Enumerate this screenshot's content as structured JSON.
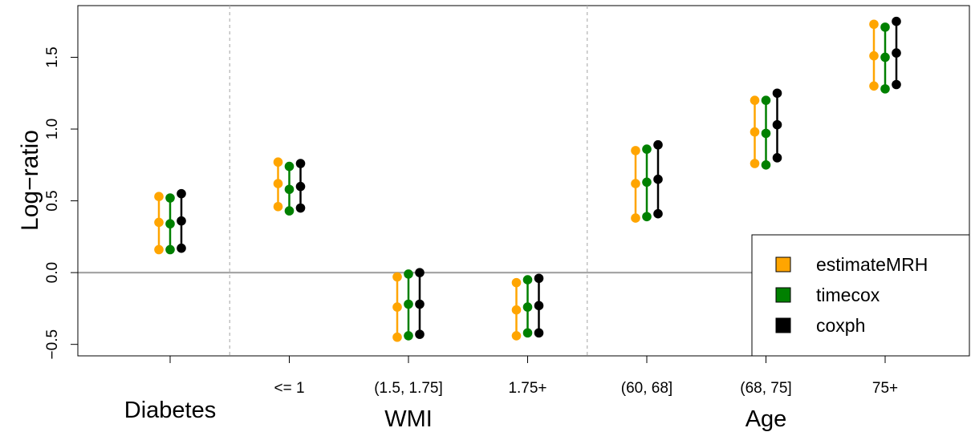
{
  "chart_data": {
    "type": "interval",
    "ylabel": "Log−ratio",
    "ylim": [
      -0.58,
      1.86
    ],
    "yticks": [
      -0.5,
      0.0,
      0.5,
      1.0,
      1.5
    ],
    "ytick_labels": [
      "−0.5",
      "0.0",
      "0.5",
      "1.0",
      "1.5"
    ],
    "reference_line": 0.0,
    "groups": [
      {
        "label": "Diabetes",
        "categories": [
          ""
        ]
      },
      {
        "label": "WMI",
        "categories": [
          "<= 1",
          "(1.5, 1.75]",
          "1.75+"
        ]
      },
      {
        "label": "Age",
        "categories": [
          "(60, 68]",
          "(68, 75]",
          "75+"
        ]
      }
    ],
    "series": [
      {
        "name": "estimateMRH",
        "color": "#FFA500",
        "values": [
          {
            "low": 0.16,
            "mid": 0.35,
            "high": 0.53
          },
          {
            "low": 0.46,
            "mid": 0.62,
            "high": 0.77
          },
          {
            "low": -0.45,
            "mid": -0.24,
            "high": -0.03
          },
          {
            "low": -0.44,
            "mid": -0.26,
            "high": -0.07
          },
          {
            "low": 0.38,
            "mid": 0.62,
            "high": 0.85
          },
          {
            "low": 0.76,
            "mid": 0.98,
            "high": 1.2
          },
          {
            "low": 1.3,
            "mid": 1.51,
            "high": 1.73
          }
        ]
      },
      {
        "name": "timecox",
        "color": "#008000",
        "values": [
          {
            "low": 0.16,
            "mid": 0.34,
            "high": 0.52
          },
          {
            "low": 0.43,
            "mid": 0.58,
            "high": 0.74
          },
          {
            "low": -0.44,
            "mid": -0.22,
            "high": -0.01
          },
          {
            "low": -0.42,
            "mid": -0.24,
            "high": -0.05
          },
          {
            "low": 0.39,
            "mid": 0.63,
            "high": 0.86
          },
          {
            "low": 0.75,
            "mid": 0.97,
            "high": 1.2
          },
          {
            "low": 1.28,
            "mid": 1.5,
            "high": 1.71
          }
        ]
      },
      {
        "name": "coxph",
        "color": "#000000",
        "values": [
          {
            "low": 0.17,
            "mid": 0.36,
            "high": 0.55
          },
          {
            "low": 0.45,
            "mid": 0.6,
            "high": 0.76
          },
          {
            "low": -0.43,
            "mid": -0.22,
            "high": 0.0
          },
          {
            "low": -0.42,
            "mid": -0.23,
            "high": -0.04
          },
          {
            "low": 0.41,
            "mid": 0.65,
            "high": 0.89
          },
          {
            "low": 0.8,
            "mid": 1.03,
            "high": 1.25
          },
          {
            "low": 1.31,
            "mid": 1.53,
            "high": 1.75
          }
        ]
      }
    ],
    "legend_position": "bottom-right",
    "grid": false
  }
}
